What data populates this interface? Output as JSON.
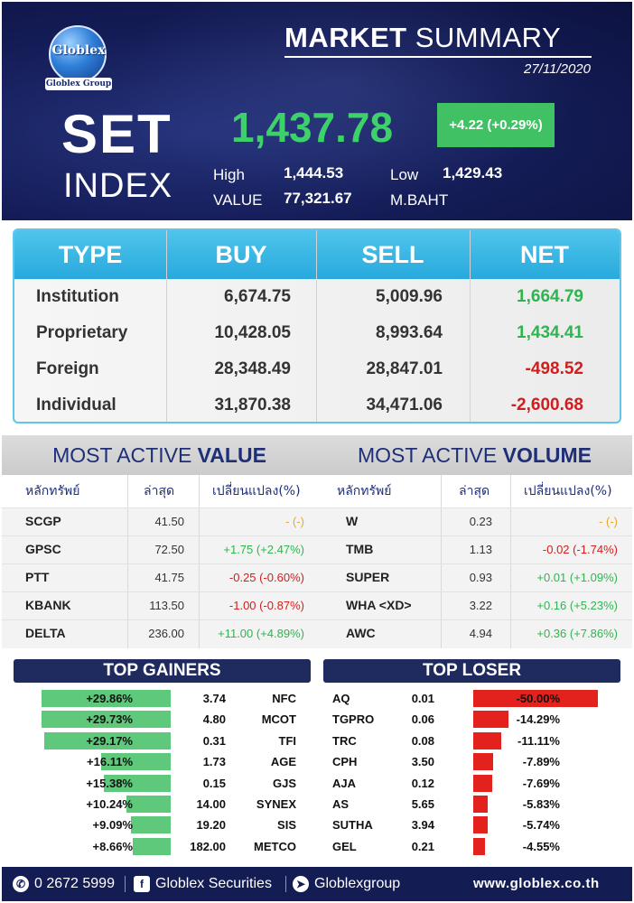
{
  "header": {
    "logo_text": "Globlex",
    "logo_group": "Globlex Group",
    "title_bold": "MARKET",
    "title_light": "SUMMARY",
    "date": "27/11/2020",
    "index_line1": "SET",
    "index_line2": "INDEX",
    "index_value": "1,437.78",
    "index_change": "+4.22 (+0.29%)",
    "high_label": "High",
    "high_value": "1,444.53",
    "low_label": "Low",
    "low_value": "1,429.43",
    "value_label": "VALUE",
    "value_amount": "77,321.67",
    "value_unit": "M.BAHT",
    "positive_color": "#3ed06a"
  },
  "investors": {
    "headers": [
      "TYPE",
      "BUY",
      "SELL",
      "NET"
    ],
    "rows": [
      {
        "type": "Institution",
        "buy": "6,674.75",
        "sell": "5,009.96",
        "net": "1,664.79",
        "dir": "pos"
      },
      {
        "type": "Proprietary",
        "buy": "10,428.05",
        "sell": "8,993.64",
        "net": "1,434.41",
        "dir": "pos"
      },
      {
        "type": "Foreign",
        "buy": "28,348.49",
        "sell": "28,847.01",
        "net": "-498.52",
        "dir": "neg"
      },
      {
        "type": "Individual",
        "buy": "31,870.38",
        "sell": "34,471.06",
        "net": "-2,600.68",
        "dir": "neg"
      }
    ]
  },
  "most_active_value": {
    "title_light": "MOST ACTIVE",
    "title_bold": "VALUE",
    "headers": [
      "หลักทรัพย์",
      "ล่าสุด",
      "เปลี่ยนแปลง(%)"
    ],
    "rows": [
      {
        "symbol": "SCGP",
        "last": "41.50",
        "change": "- (-)",
        "dir": "flat"
      },
      {
        "symbol": "GPSC",
        "last": "72.50",
        "change": "+1.75 (+2.47%)",
        "dir": "pos"
      },
      {
        "symbol": "PTT",
        "last": "41.75",
        "change": "-0.25 (-0.60%)",
        "dir": "neg"
      },
      {
        "symbol": "KBANK",
        "last": "113.50",
        "change": "-1.00 (-0.87%)",
        "dir": "neg"
      },
      {
        "symbol": "DELTA",
        "last": "236.00",
        "change": "+11.00 (+4.89%)",
        "dir": "pos"
      }
    ]
  },
  "most_active_volume": {
    "title_light": "MOST ACTIVE",
    "title_bold": "VOLUME",
    "headers": [
      "หลักทรัพย์",
      "ล่าสุด",
      "เปลี่ยนแปลง(%)"
    ],
    "rows": [
      {
        "symbol": "W",
        "last": "0.23",
        "change": "- (-)",
        "dir": "flat"
      },
      {
        "symbol": "TMB",
        "last": "1.13",
        "change": "-0.02 (-1.74%)",
        "dir": "neg"
      },
      {
        "symbol": "SUPER",
        "last": "0.93",
        "change": "+0.01 (+1.09%)",
        "dir": "pos"
      },
      {
        "symbol": "WHA <XD>",
        "last": "3.22",
        "change": "+0.16 (+5.23%)",
        "dir": "pos"
      },
      {
        "symbol": "AWC",
        "last": "4.94",
        "change": "+0.36 (+7.86%)",
        "dir": "pos"
      }
    ]
  },
  "top_gainers": {
    "title": "TOP GAINERS",
    "bar_color": "#5ec97a",
    "rows": [
      {
        "pct": "+29.86%",
        "pct_value": 29.86,
        "price": "3.74",
        "symbol": "NFC"
      },
      {
        "pct": "+29.73%",
        "pct_value": 29.73,
        "price": "4.80",
        "symbol": "MCOT"
      },
      {
        "pct": "+29.17%",
        "pct_value": 29.17,
        "price": "0.31",
        "symbol": "TFI"
      },
      {
        "pct": "+16.11%",
        "pct_value": 16.11,
        "price": "1.73",
        "symbol": "AGE"
      },
      {
        "pct": "+15.38%",
        "pct_value": 15.38,
        "price": "0.15",
        "symbol": "GJS"
      },
      {
        "pct": "+10.24%",
        "pct_value": 10.24,
        "price": "14.00",
        "symbol": "SYNEX"
      },
      {
        "pct": "+9.09%",
        "pct_value": 9.09,
        "price": "19.20",
        "symbol": "SIS"
      },
      {
        "pct": "+8.66%",
        "pct_value": 8.66,
        "price": "182.00",
        "symbol": "METCO"
      }
    ]
  },
  "top_losers": {
    "title": "TOP LOSER",
    "bar_color": "#e3211d",
    "rows": [
      {
        "symbol": "AQ",
        "price": "0.01",
        "pct": "-50.00%",
        "pct_value": 50.0
      },
      {
        "symbol": "TGPRO",
        "price": "0.06",
        "pct": "-14.29%",
        "pct_value": 14.29
      },
      {
        "symbol": "TRC",
        "price": "0.08",
        "pct": "-11.11%",
        "pct_value": 11.11
      },
      {
        "symbol": "CPH",
        "price": "3.50",
        "pct": "-7.89%",
        "pct_value": 7.89
      },
      {
        "symbol": "AJA",
        "price": "0.12",
        "pct": "-7.69%",
        "pct_value": 7.69
      },
      {
        "symbol": "AS",
        "price": "5.65",
        "pct": "-5.83%",
        "pct_value": 5.83
      },
      {
        "symbol": "SUTHA",
        "price": "3.94",
        "pct": "-5.74%",
        "pct_value": 5.74
      },
      {
        "symbol": "GEL",
        "price": "0.21",
        "pct": "-4.55%",
        "pct_value": 4.55
      }
    ]
  },
  "footer": {
    "phone": "0 2672 5999",
    "facebook": "Globlex Securities",
    "telegram": "Globlexgroup",
    "website": "www.globlex.co.th",
    "phone_icon": "phone-icon",
    "facebook_icon": "facebook-icon",
    "telegram_icon": "telegram-icon"
  }
}
